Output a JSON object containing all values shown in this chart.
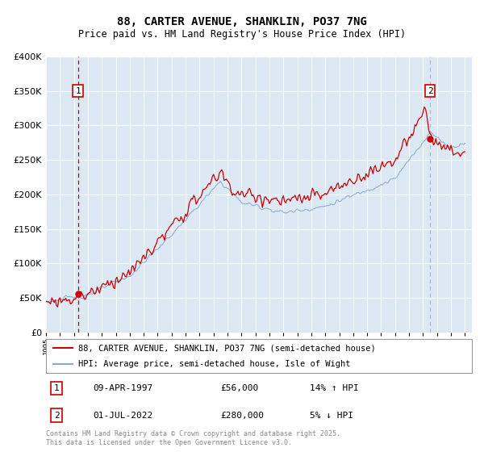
{
  "title1": "88, CARTER AVENUE, SHANKLIN, PO37 7NG",
  "title2": "Price paid vs. HM Land Registry's House Price Index (HPI)",
  "legend1": "88, CARTER AVENUE, SHANKLIN, PO37 7NG (semi-detached house)",
  "legend2": "HPI: Average price, semi-detached house, Isle of Wight",
  "annotation1_date": "09-APR-1997",
  "annotation1_price": "£56,000",
  "annotation1_hpi": "14% ↑ HPI",
  "annotation2_date": "01-JUL-2022",
  "annotation2_price": "£280,000",
  "annotation2_hpi": "5% ↓ HPI",
  "copyright": "Contains HM Land Registry data © Crown copyright and database right 2025.\nThis data is licensed under the Open Government Licence v3.0.",
  "line1_color": "#cc0000",
  "line2_color": "#88aacc",
  "bg_color": "#dce9f5",
  "vline1_color": "#cc0000",
  "vline2_color": "#aabbcc",
  "annotation_box_color": "#cc0000",
  "ylim": [
    0,
    400000
  ],
  "yticks": [
    0,
    50000,
    100000,
    150000,
    200000,
    250000,
    300000,
    350000,
    400000
  ],
  "sale1_year": 1997.29,
  "sale1_price": 56000,
  "sale2_year": 2022.5,
  "sale2_price": 280000
}
